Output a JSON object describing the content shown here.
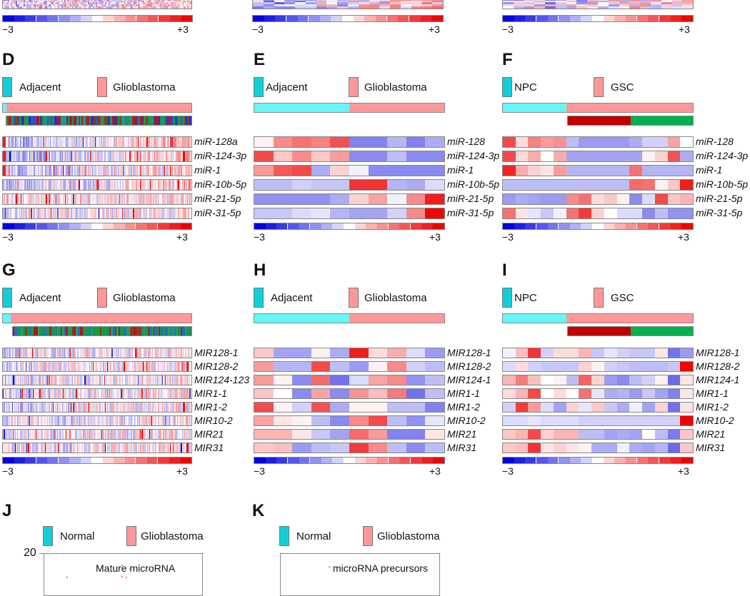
{
  "colors": {
    "adjacent": "#66f6f9",
    "adjacent_legend": "#11cfd9",
    "glioblastoma": "#fe9898",
    "gsc_sub1": "#c00000",
    "gsc_sub2": "#00b050",
    "scale_min": "#0000e0",
    "scale_mid": "#ffffff",
    "scale_max": "#ee0000"
  },
  "colorscale": {
    "min_label": "−3",
    "max_label": "+3",
    "min": -3,
    "max": 3,
    "steps": 17,
    "tick_after_steps": [
      3,
      5,
      12,
      14
    ]
  },
  "top_row": {
    "panels": [
      {
        "id": "A-fragment",
        "pattern_seed": 11,
        "rows": 6
      },
      {
        "id": "B-fragment",
        "pattern_seed": 12,
        "rows": 6
      },
      {
        "id": "C-fragment",
        "pattern_seed": 13,
        "rows": 6
      }
    ]
  },
  "chart_data": [
    {
      "type": "heatmap",
      "panel": "D",
      "legend": [
        "Adjacent",
        "Glioblastoma"
      ],
      "group_fraction_adjacent": 0.02,
      "subtype_track": "multi-color",
      "rows": [
        "miR-128a",
        "miR-124-3p",
        "miR-1",
        "miR-10b-5p",
        "miR-21-5p",
        "miR-31-5p"
      ],
      "columns": "dense (~200 samples)",
      "row_trend": [
        {
          "left": -0.8,
          "right": 0.9
        },
        {
          "left": -0.9,
          "right": 0.7
        },
        {
          "left": -0.5,
          "right": 0.4
        },
        {
          "left": -0.7,
          "right": 0.6
        },
        {
          "left": 0.3,
          "right": 0.3
        },
        {
          "left": -0.2,
          "right": 0.2
        }
      ],
      "seed": 101,
      "ncols": 200,
      "clim": [
        -3,
        3
      ]
    },
    {
      "type": "heatmap",
      "panel": "E",
      "legend": [
        "Adjacent",
        "Glioblastoma"
      ],
      "group_split": [
        5,
        5
      ],
      "rows": [
        "miR-128",
        "miR-124-3p",
        "miR-1",
        "miR-10b-5p",
        "miR-21-5p",
        "miR-31-5p"
      ],
      "values": [
        [
          0.1,
          1.2,
          1.5,
          1.3,
          1.9,
          -1.3,
          -1.3,
          -0.7,
          -1.3,
          -0.8
        ],
        [
          2.0,
          0.5,
          1.2,
          0.5,
          1.0,
          -1.2,
          -1.2,
          -0.6,
          -1.2,
          -1.2
        ],
        [
          1.0,
          1.8,
          2.0,
          -0.8,
          0.4,
          -0.1,
          -1.2,
          -1.2,
          -1.2,
          -1.2
        ],
        [
          -0.6,
          -0.6,
          -0.4,
          -0.5,
          -0.5,
          2.3,
          2.3,
          -0.7,
          -0.8,
          -0.3
        ],
        [
          -1.1,
          -1.1,
          -1.1,
          -1.1,
          -0.8,
          0.4,
          0.9,
          -0.1,
          1.2,
          2.6
        ],
        [
          -0.5,
          -0.5,
          -0.3,
          -0.2,
          -0.7,
          -0.9,
          -0.9,
          -0.4,
          1.2,
          2.9
        ]
      ],
      "clim": [
        -3,
        3
      ]
    },
    {
      "type": "heatmap",
      "panel": "F",
      "legend": [
        "NPC",
        "GSC"
      ],
      "group_split": [
        5,
        10
      ],
      "subgroup_split": [
        5,
        5
      ],
      "rows": [
        "miR-128",
        "miR-124-3p",
        "miR-1",
        "miR-10b-5p",
        "miR-21-5p",
        "miR-31-5p"
      ],
      "values": [
        [
          2.0,
          0.3,
          1.3,
          1.0,
          1.1,
          -0.6,
          -1.0,
          -1.0,
          -1.0,
          -1.0,
          -0.8,
          -0.4,
          -0.4,
          0.9,
          0.0
        ],
        [
          2.0,
          0.3,
          0.8,
          0.0,
          0.8,
          -0.9,
          -0.9,
          -0.9,
          -0.9,
          -0.9,
          -0.9,
          0.1,
          0.4,
          1.9,
          -0.8
        ],
        [
          2.5,
          0.8,
          0.4,
          0.2,
          1.0,
          -0.7,
          -0.7,
          -0.7,
          -0.7,
          -0.7,
          1.5,
          -0.7,
          -0.7,
          -0.7,
          -0.7
        ],
        [
          -0.6,
          -0.6,
          -0.6,
          -0.6,
          -0.6,
          -0.6,
          -0.6,
          -0.6,
          -0.6,
          -0.6,
          1.6,
          1.5,
          0.1,
          0.5,
          2.6
        ],
        [
          -1.0,
          -0.8,
          -0.9,
          -1.0,
          -1.0,
          1.2,
          1.5,
          0.3,
          0.5,
          0.1,
          -1.2,
          -0.3,
          2.0,
          0.5,
          0.7
        ],
        [
          1.5,
          0.2,
          -0.2,
          -0.5,
          -0.1,
          1.5,
          2.2,
          0.4,
          0.0,
          -0.3,
          -0.3,
          -1.2,
          -0.6,
          -1.1,
          -1.1
        ]
      ],
      "clim": [
        -3,
        3
      ]
    },
    {
      "type": "heatmap",
      "panel": "G",
      "legend": [
        "Adjacent",
        "Glioblastoma"
      ],
      "group_fraction_adjacent": 0.04,
      "subtype_track": "multi-color",
      "rows": [
        "MIR128-1",
        "MIR128-2",
        "MIR124-123",
        "MIR1-1",
        "MIR1-2",
        "MIR10-2",
        "MIR21",
        "MIR31"
      ],
      "columns": "dense (~200 samples)",
      "seed": 202,
      "ncols": 200,
      "clim": [
        -3,
        3
      ]
    },
    {
      "type": "heatmap",
      "panel": "H",
      "legend": [
        "Adjacent",
        "Glioblastoma"
      ],
      "group_split": [
        5,
        5
      ],
      "rows": [
        "MIR128-1",
        "MIR128-2",
        "MIR124-1",
        "MIR1-1",
        "MIR1-2",
        "MIR10-2",
        "MIR21",
        "MIR31"
      ],
      "values": [
        [
          0.5,
          -0.9,
          -0.9,
          0.1,
          -0.8,
          2.6,
          0.3,
          0.8,
          -0.3,
          -1.0
        ],
        [
          1.0,
          -0.7,
          -0.7,
          2.0,
          -0.6,
          -1.0,
          0.1,
          1.2,
          -0.4,
          -0.6
        ],
        [
          1.0,
          0.1,
          -1.2,
          1.6,
          -1.5,
          -0.3,
          0.9,
          1.2,
          -1.1,
          -0.6
        ],
        [
          0.5,
          0.0,
          -1.2,
          0.9,
          -1.2,
          1.1,
          0.6,
          1.4,
          -1.5,
          -0.6
        ],
        [
          2.0,
          0.1,
          -0.4,
          1.9,
          -0.8,
          0.1,
          0.1,
          -0.6,
          -0.6,
          -1.3
        ],
        [
          0.9,
          0.2,
          0.1,
          -0.6,
          -1.2,
          1.2,
          2.0,
          -0.6,
          -1.1,
          -0.2
        ],
        [
          0.7,
          0.7,
          0.2,
          -0.5,
          -0.9,
          1.6,
          1.0,
          -1.3,
          -1.3,
          0.2
        ],
        [
          0.5,
          0.6,
          -1.0,
          -0.6,
          -0.5,
          2.2,
          1.2,
          -0.6,
          -1.2,
          -0.6
        ]
      ],
      "clim": [
        -3,
        3
      ]
    },
    {
      "type": "heatmap",
      "panel": "I",
      "legend": [
        "NPC",
        "GSC"
      ],
      "group_split": [
        5,
        10
      ],
      "subgroup_split": [
        5,
        5
      ],
      "rows": [
        "MIR128-1",
        "MIR128-2",
        "MIR124-1",
        "MIR1-1",
        "MIR1-2",
        "MIR10-2",
        "MIR21",
        "MIR31"
      ],
      "values": [
        [
          -0.1,
          0.6,
          2.3,
          -0.4,
          0.3,
          0.3,
          0.7,
          -0.5,
          -0.2,
          -0.4,
          -0.5,
          -0.5,
          0.2,
          -1.5,
          -1.0
        ],
        [
          -0.3,
          0.3,
          -0.4,
          -0.5,
          -0.5,
          -0.5,
          0.4,
          0.1,
          -0.4,
          -0.5,
          -0.6,
          -0.6,
          -0.6,
          -0.5,
          2.9
        ],
        [
          0.7,
          1.4,
          0.6,
          0.0,
          0.1,
          -0.6,
          1.7,
          0.4,
          -1.0,
          -1.2,
          -0.6,
          -0.4,
          0.1,
          -1.6,
          0.2
        ],
        [
          0.3,
          0.7,
          2.0,
          0.0,
          0.3,
          0.0,
          1.5,
          -0.2,
          -0.8,
          -0.7,
          -1.0,
          -0.5,
          -0.9,
          -1.3,
          0.2
        ],
        [
          -0.4,
          2.2,
          1.0,
          -0.3,
          -0.9,
          0.4,
          -0.2,
          0.5,
          -0.5,
          -0.8,
          -0.1,
          -0.9,
          0.4,
          -1.5,
          0.2
        ],
        [
          -0.3,
          -0.3,
          -0.2,
          -0.3,
          -0.3,
          -0.3,
          -0.4,
          -0.4,
          -0.4,
          -0.4,
          -0.4,
          -0.4,
          -0.4,
          -0.4,
          3.0
        ],
        [
          0.5,
          0.7,
          2.0,
          0.4,
          0.7,
          0.7,
          -0.6,
          -0.6,
          -0.9,
          -0.8,
          -0.9,
          0.0,
          -0.6,
          -1.4,
          0.5
        ],
        [
          0.5,
          0.6,
          2.3,
          0.2,
          0.4,
          0.2,
          0.1,
          -0.8,
          -0.8,
          -0.1,
          -0.8,
          -0.9,
          -0.7,
          -1.6,
          0.5
        ]
      ],
      "clim": [
        -3,
        3
      ]
    },
    {
      "type": "scatter",
      "panel": "J",
      "legend": [
        "Normal",
        "Glioblastoma"
      ],
      "title": "Mature microRNA",
      "ytick_labels": [
        "20"
      ],
      "ylim_top": 20
    },
    {
      "type": "scatter",
      "panel": "K",
      "legend": [
        "Normal",
        "Glioblastoma"
      ],
      "title": "microRNA precursors"
    }
  ]
}
